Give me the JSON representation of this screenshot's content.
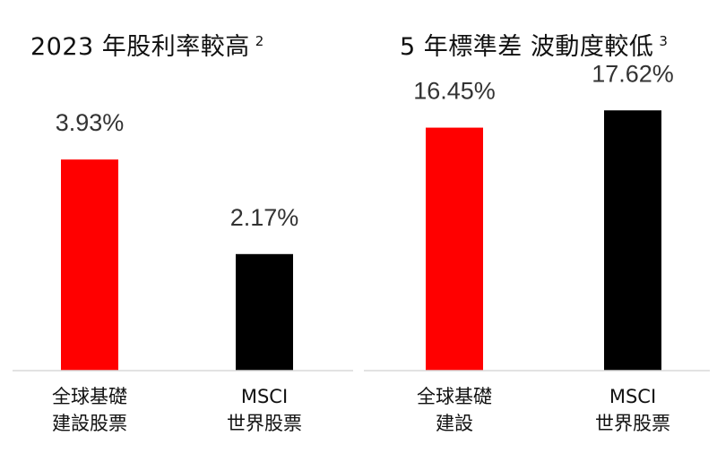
{
  "chart_data": [
    {
      "type": "bar",
      "title": "2023 年股利率較高",
      "title_note": "2",
      "categories": [
        [
          "全球基礎",
          "建設股票"
        ],
        [
          "MSCI",
          "世界股票"
        ]
      ],
      "values": [
        3.93,
        2.17
      ],
      "value_labels": [
        "3.93%",
        "2.17%"
      ],
      "colors": [
        "#ff0000",
        "#000000"
      ],
      "ylim": [
        0,
        5.5
      ],
      "grid": false,
      "legend": "none"
    },
    {
      "type": "bar",
      "title": "5 年標準差 波動度較低",
      "title_note": "3",
      "categories": [
        [
          "全球基礎",
          "建設"
        ],
        [
          "MSCI",
          "世界股票"
        ]
      ],
      "values": [
        16.45,
        17.62
      ],
      "value_labels": [
        "16.45%",
        "17.62%"
      ],
      "colors": [
        "#ff0000",
        "#000000"
      ],
      "ylim": [
        0,
        20
      ],
      "grid": false,
      "legend": "none"
    }
  ]
}
